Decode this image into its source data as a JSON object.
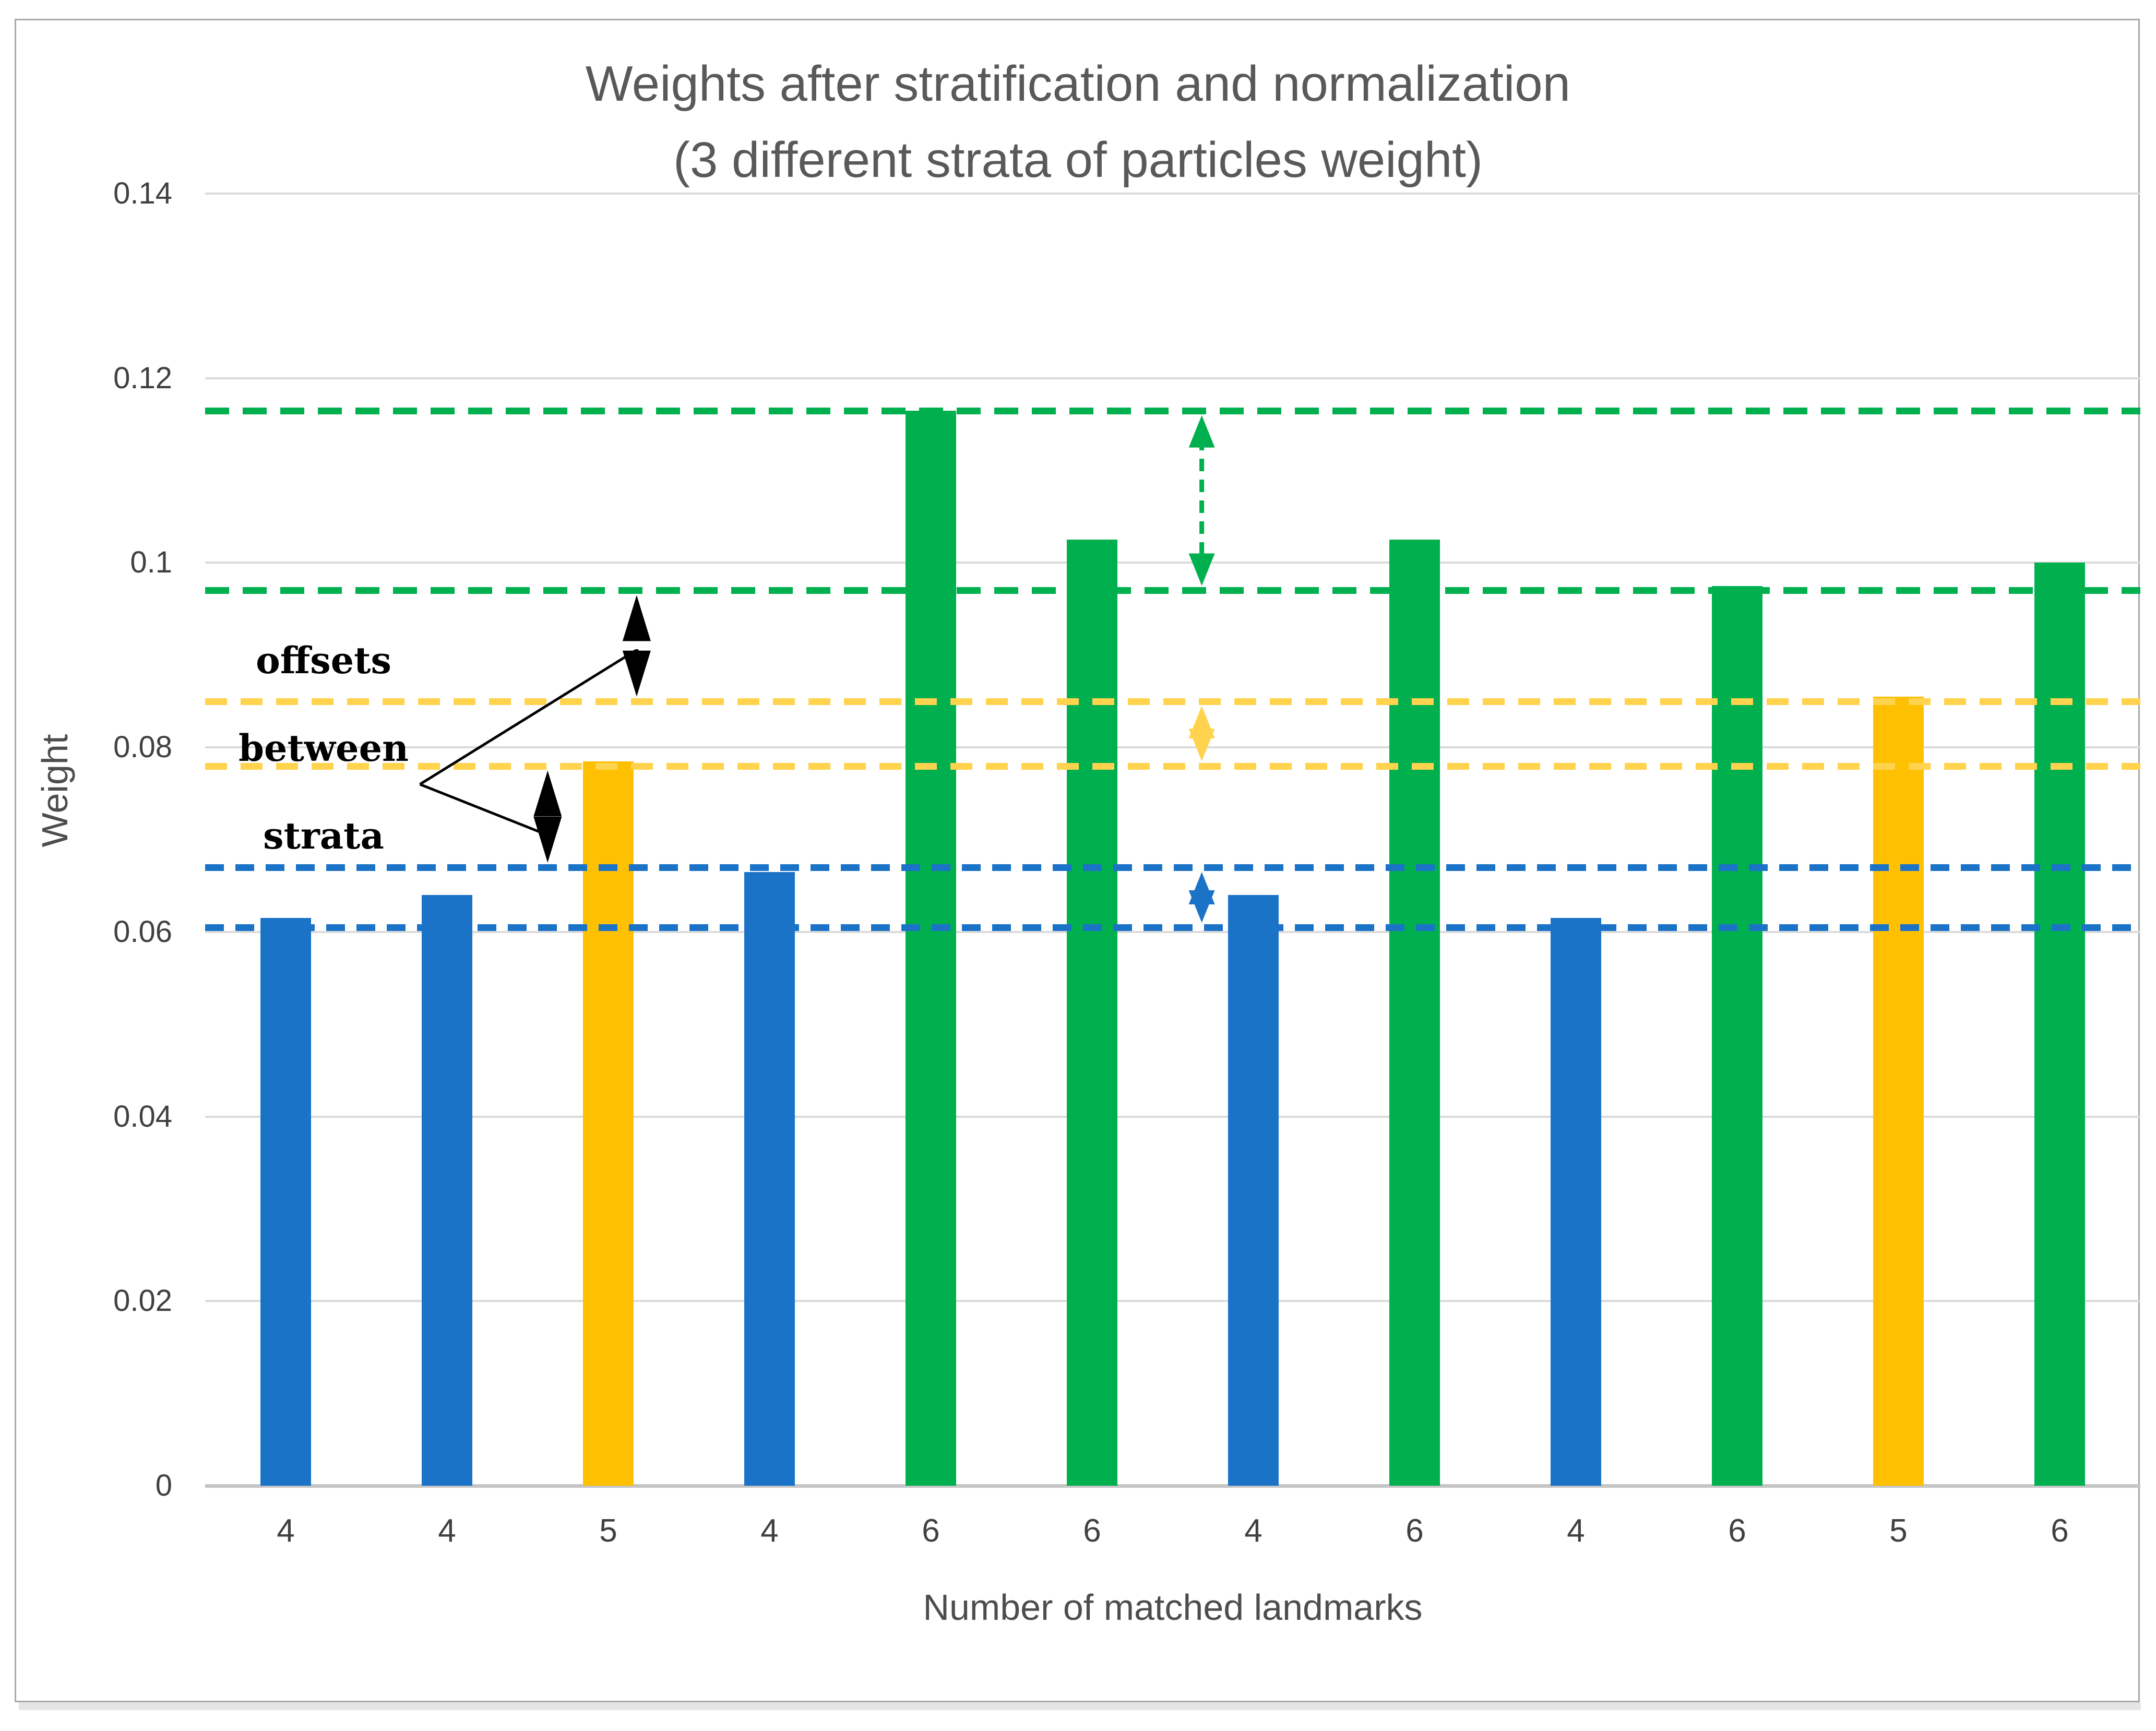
{
  "window": {
    "background": "#ffffff",
    "frame_border_color": "#a9a9a9",
    "frame_shadow_color": "#e5e5e5"
  },
  "chart_data": {
    "type": "bar",
    "title": "Weights after stratification and normalization (3 different strata of particles weight)",
    "title_lines": [
      "Weights after stratification and normalization",
      "(3 different strata of particles weight)"
    ],
    "title_color": "#595959",
    "xlabel": "Number of matched landmarks",
    "ylabel": "Weight",
    "categories": [
      "4",
      "4",
      "5",
      "4",
      "6",
      "6",
      "4",
      "6",
      "4",
      "6",
      "5",
      "6"
    ],
    "values": [
      0.0615,
      0.064,
      0.0785,
      0.0665,
      0.1165,
      0.1025,
      0.064,
      0.1025,
      0.0615,
      0.0975,
      0.0855,
      0.1
    ],
    "bar_color_by_category": {
      "4": "#1b73c8",
      "5": "#ffc002",
      "6": "#00b04f"
    },
    "ylim": [
      0,
      0.14
    ],
    "yticks": [
      0,
      0.02,
      0.04,
      0.06,
      0.08,
      0.1,
      0.12,
      0.14
    ],
    "ytick_labels": [
      "0",
      "0.02",
      "0.04",
      "0.06",
      "0.08",
      "0.1",
      "0.12",
      "0.14"
    ],
    "grid": true,
    "gridline_color": "#dbdbdb",
    "axis_line_color": "#c5c5c5",
    "axis_text_color": "#404040",
    "strata_lines": [
      {
        "stratum": "high",
        "dash_color": "#00b04f",
        "upper": 0.1165,
        "lower": 0.097,
        "dash": 46,
        "gap": 26
      },
      {
        "stratum": "middle",
        "dash_color": "#ffd34d",
        "upper": 0.085,
        "lower": 0.078,
        "dash": 42,
        "gap": 26
      },
      {
        "stratum": "low",
        "dash_color": "#1b73c8",
        "upper": 0.067,
        "lower": 0.0605,
        "dash": 36,
        "gap": 22
      }
    ],
    "offset_arrows": [
      {
        "color": "#00b04f",
        "from": 0.097,
        "to": 0.1165,
        "x_frac": 0.515,
        "style": "colored"
      },
      {
        "color": "#ffd34d",
        "from": 0.078,
        "to": 0.085,
        "x_frac": 0.515,
        "style": "colored"
      },
      {
        "color": "#1b73c8",
        "from": 0.0605,
        "to": 0.067,
        "x_frac": 0.515,
        "style": "colored"
      },
      {
        "color": "#000000",
        "from": 0.085,
        "to": 0.097,
        "x_frac": 0.223,
        "style": "black"
      },
      {
        "color": "#000000",
        "from": 0.067,
        "to": 0.078,
        "x_frac": 0.177,
        "style": "black"
      }
    ],
    "annotation": {
      "lines": [
        "offsets",
        "between",
        "strata"
      ],
      "connector": {
        "vertex": [
          0.111,
          0.076
        ],
        "ends": [
          [
            0.2225,
            0.0905
          ],
          [
            0.177,
            0.0705
          ]
        ]
      }
    },
    "legend": null
  }
}
